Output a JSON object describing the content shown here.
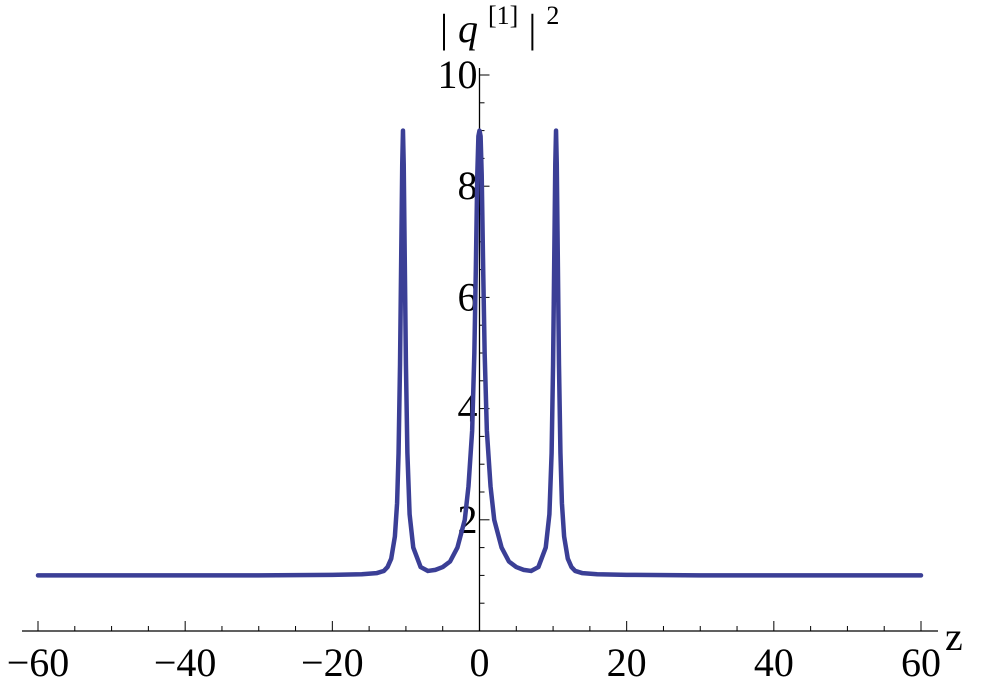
{
  "chart_data": {
    "type": "line",
    "title": "",
    "xlabel": "z",
    "ylabel": "|q[1]|2",
    "ylabel_parts": {
      "open": "|",
      "var": "q",
      "sup": "[1]",
      "close": "|",
      "power": "2"
    },
    "xlim": [
      -60,
      60
    ],
    "ylim": [
      0,
      10
    ],
    "x_ticks": [
      -60,
      -40,
      -20,
      0,
      20,
      40,
      60
    ],
    "x_tick_labels": [
      "−60",
      "−40",
      "−20",
      "0",
      "20",
      "40",
      "60"
    ],
    "y_ticks": [
      2,
      4,
      6,
      8,
      10
    ],
    "y_tick_labels": [
      "2",
      "4",
      "6",
      "8",
      "10"
    ],
    "grid": false,
    "series": [
      {
        "color": "#3b3f96",
        "x": [
          -60,
          -40,
          -30,
          -20,
          -16,
          -14,
          -13,
          -12.5,
          -12,
          -11.5,
          -11.2,
          -11,
          -10.8,
          -10.6,
          -10.5,
          -10.4,
          -10.3,
          -10.2,
          -10.0,
          -9.8,
          -9.5,
          -9.0,
          -8.0,
          -7.0,
          -6.0,
          -5.0,
          -4.0,
          -3.0,
          -2.0,
          -1.5,
          -1.0,
          -0.7,
          -0.5,
          -0.3,
          -0.15,
          0,
          0.15,
          0.3,
          0.5,
          0.7,
          1.0,
          1.5,
          2.0,
          3.0,
          4.0,
          5.0,
          6.0,
          7.0,
          8.0,
          9.0,
          9.5,
          9.8,
          10.0,
          10.2,
          10.3,
          10.4,
          10.5,
          10.6,
          10.8,
          11.0,
          11.2,
          11.5,
          12.0,
          12.5,
          13.0,
          14.0,
          16.0,
          20.0,
          30.0,
          40.0,
          60.0
        ],
        "y": [
          1.0,
          1.0,
          1.0,
          1.01,
          1.02,
          1.04,
          1.08,
          1.15,
          1.3,
          1.7,
          2.3,
          3.2,
          4.8,
          7.2,
          8.4,
          9.0,
          8.4,
          7.2,
          4.8,
          3.2,
          2.1,
          1.5,
          1.15,
          1.08,
          1.1,
          1.15,
          1.25,
          1.5,
          2.0,
          2.6,
          3.6,
          5.0,
          6.5,
          8.2,
          8.9,
          9.0,
          8.9,
          8.2,
          6.5,
          5.0,
          3.6,
          2.6,
          2.0,
          1.5,
          1.25,
          1.15,
          1.1,
          1.08,
          1.15,
          1.5,
          2.1,
          3.2,
          4.8,
          7.2,
          8.4,
          9.0,
          8.4,
          7.2,
          4.8,
          3.2,
          2.3,
          1.7,
          1.3,
          1.15,
          1.08,
          1.04,
          1.02,
          1.01,
          1.0,
          1.0,
          1.0
        ]
      }
    ]
  }
}
